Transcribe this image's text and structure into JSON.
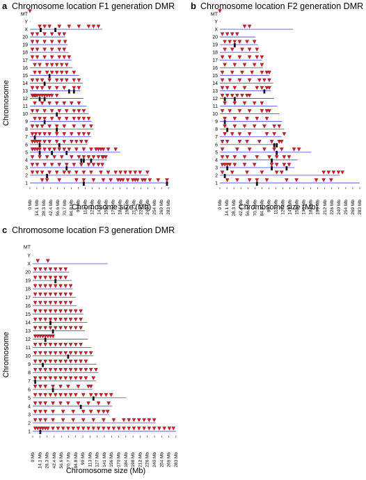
{
  "figure": {
    "panels": [
      {
        "letter": "a",
        "title": "Chromosome location F1 generation DMR"
      },
      {
        "letter": "b",
        "title": "Chromosome location F2 generation DMR"
      },
      {
        "letter": "c",
        "title": "Chromosome location F3 generation DMR"
      }
    ]
  },
  "colors": {
    "chromosome_line": "#5a5ae0",
    "dmr_marker": "#c81e28",
    "dmr_cluster": "#111111",
    "text": "#000000"
  },
  "chart_data": [
    {
      "type": "scatter",
      "title": "Chromosome location F1 generation DMR",
      "xlabel": "Chromosome size (Mb)",
      "ylabel": "Chromosome",
      "xlim": [
        0,
        290
      ],
      "x_ticks": [
        "0 Mb",
        "14.1 Mb",
        "28.3 Mb",
        "42.4 Mb",
        "56.6 Mb",
        "70.7 Mb",
        "84.8 Mb",
        "99 Mb",
        "113 Mb",
        "127 Mb",
        "141 Mb",
        "156 Mb",
        "170 Mb",
        "184 Mb",
        "198 Mb",
        "212 Mb",
        "226 Mb",
        "240 Mb",
        "254 Mb",
        "269 Mb",
        "283 Mb"
      ],
      "chromosomes": [
        "1",
        "2",
        "3",
        "4",
        "5",
        "6",
        "7",
        "8",
        "9",
        "10",
        "11",
        "12",
        "13",
        "14",
        "15",
        "16",
        "17",
        "18",
        "19",
        "20",
        "X",
        "Y",
        "MT"
      ],
      "lengths": [
        283,
        243,
        151,
        157,
        185,
        118,
        125,
        130,
        126,
        120,
        116,
        109,
        103,
        108,
        100,
        87,
        85,
        79,
        77,
        72,
        148,
        1,
        0
      ],
      "dmr_positions": {
        "1": [
          25,
          35,
          60,
          95,
          110,
          130,
          150,
          165,
          180,
          185,
          190,
          200,
          210,
          215,
          220,
          230,
          235,
          245,
          262,
          280
        ],
        "2": [
          5,
          15,
          25,
          40,
          55,
          70,
          80,
          95,
          110,
          125,
          145,
          160,
          175,
          185,
          195,
          205,
          215,
          225,
          240
        ],
        "3": [
          5,
          15,
          30,
          45,
          60,
          75,
          90,
          105,
          120,
          130,
          140,
          148
        ],
        "4": [
          5,
          20,
          35,
          50,
          65,
          85,
          100,
          110,
          120,
          130,
          140,
          148,
          150,
          155
        ],
        "5": [
          5,
          10,
          15,
          20,
          30,
          40,
          50,
          60,
          70,
          80,
          95,
          110,
          125,
          135,
          140,
          145,
          150,
          160,
          175
        ],
        "6": [
          5,
          10,
          15,
          20,
          30,
          40,
          55,
          70,
          85,
          95,
          105,
          115
        ],
        "7": [
          5,
          12,
          20,
          30,
          40,
          55,
          70,
          85,
          100,
          110,
          120
        ],
        "8": [
          5,
          15,
          25,
          40,
          55,
          70,
          90,
          110,
          125
        ],
        "9": [
          10,
          20,
          30,
          45,
          60,
          75,
          90,
          100,
          110,
          120
        ],
        "10": [
          5,
          15,
          30,
          45,
          60,
          75,
          90,
          100,
          110
        ],
        "11": [
          10,
          25,
          40,
          55,
          70,
          85,
          100
        ],
        "12": [
          5,
          8,
          10,
          12,
          15,
          20,
          25,
          30,
          35,
          40,
          45,
          55
        ],
        "13": [
          5,
          15,
          25,
          40,
          55,
          70,
          90,
          100
        ],
        "14": [
          5,
          15,
          25,
          40,
          55,
          65,
          75,
          90,
          100
        ],
        "15": [
          10,
          20,
          35,
          45,
          55,
          65,
          75,
          90
        ],
        "16": [
          10,
          20,
          35,
          45,
          55,
          65,
          75
        ],
        "17": [
          5,
          15,
          30,
          45,
          60,
          70,
          80
        ],
        "18": [
          5,
          15,
          30,
          45,
          60,
          70
        ],
        "19": [
          5,
          15,
          30,
          45,
          60,
          72
        ],
        "20": [
          5,
          15,
          30,
          45,
          60,
          70
        ],
        "X": [
          20,
          30,
          40,
          60,
          80,
          100,
          120,
          130,
          140
        ],
        "Y": [],
        "MT": [
          0
        ]
      },
      "dmr_clusters": {
        "1": [
          110,
          280
        ],
        "2": [
          35
        ],
        "3": [
          75
        ],
        "4": [
          105,
          110,
          125
        ],
        "5": [
          20,
          45,
          75
        ],
        "6": [
          20,
          60
        ],
        "7": [
          10
        ],
        "8": [
          55
        ],
        "9": [
          30
        ],
        "10": [
          55
        ],
        "12": [
          20,
          30
        ],
        "13": [
          80,
          90
        ],
        "14": [
          30
        ],
        "15": [
          40
        ],
        "X": [
          22,
          52
        ]
      }
    },
    {
      "type": "scatter",
      "title": "Chromosome location F2 generation DMR",
      "xlabel": "Chromosome size (Mb)",
      "ylabel": "",
      "xlim": [
        0,
        290
      ],
      "x_ticks": [
        "0 Mb",
        "14.1 Mb",
        "28.3 Mb",
        "42.4 Mb",
        "56.6 Mb",
        "70.7 Mb",
        "84.8 Mb",
        "99 Mb",
        "113 Mb",
        "127 Mb",
        "141 Mb",
        "156 Mb",
        "170 Mb",
        "184 Mb",
        "198 Mb",
        "212 Mb",
        "226 Mb",
        "240 Mb",
        "254 Mb",
        "269 Mb",
        "283 Mb"
      ],
      "chromosomes": [
        "1",
        "2",
        "3",
        "4",
        "5",
        "6",
        "7",
        "8",
        "9",
        "10",
        "11",
        "12",
        "13",
        "14",
        "15",
        "16",
        "17",
        "18",
        "19",
        "20",
        "X",
        "Y",
        "MT"
      ],
      "lengths": [
        283,
        243,
        151,
        157,
        185,
        118,
        125,
        130,
        126,
        120,
        116,
        109,
        103,
        108,
        100,
        87,
        85,
        79,
        77,
        72,
        148,
        1,
        0
      ],
      "dmr_positions": {
        "1": [
          15,
          35,
          60,
          75,
          95,
          135,
          155,
          195,
          210,
          225
        ],
        "2": [
          5,
          25,
          55,
          85,
          115,
          125,
          210,
          220,
          230,
          240,
          248
        ],
        "3": [
          5,
          10,
          15,
          20,
          30,
          50,
          70,
          105,
          115,
          130,
          140
        ],
        "4": [
          5,
          15,
          30,
          50,
          75,
          100,
          115,
          130,
          140
        ],
        "5": [
          5,
          35,
          60,
          90,
          110,
          125,
          150,
          160
        ],
        "6": [
          5,
          15,
          40,
          55,
          80,
          105,
          120,
          125
        ],
        "7": [
          10,
          25,
          40,
          60,
          95,
          110,
          130
        ],
        "8": [
          10,
          30,
          50,
          70,
          90,
          110,
          120
        ],
        "9": [
          10,
          30,
          55,
          75,
          95
        ],
        "10": [
          5,
          20,
          40,
          60,
          85,
          95,
          100
        ],
        "11": [
          10,
          30,
          50,
          70,
          85
        ],
        "12": [
          5,
          15,
          25,
          35,
          45,
          55,
          60
        ],
        "13": [
          5,
          15,
          30,
          50,
          75,
          85,
          95,
          100
        ],
        "14": [
          5,
          20,
          40,
          60,
          80,
          90,
          100
        ],
        "15": [
          5,
          25,
          45,
          65,
          85,
          95,
          100
        ],
        "16": [
          10,
          30,
          50,
          70,
          85
        ],
        "17": [
          5,
          20,
          40,
          60,
          75,
          85
        ],
        "18": [
          10,
          25,
          45,
          60,
          75
        ],
        "19": [
          10,
          20,
          30,
          40,
          55,
          70
        ],
        "20": [
          5,
          15,
          25,
          35
        ],
        "X": [
          50,
          60
        ],
        "Y": [],
        "MT": [
          0
        ]
      },
      "dmr_clusters": {
        "1": [
          75
        ],
        "2": [
          10
        ],
        "3": [
          15,
          105,
          135
        ],
        "4": [
          105
        ],
        "5": [
          115
        ],
        "6": [
          110,
          115
        ],
        "8": [
          15
        ],
        "9": [
          10
        ],
        "12": [
          10,
          30
        ],
        "13": [
          90
        ],
        "19": [
          30
        ]
      }
    },
    {
      "type": "scatter",
      "title": "Chromosome location F3 generation DMR",
      "xlabel": "Chromosome size (Mb)",
      "ylabel": "Chromosome",
      "xlim": [
        0,
        290
      ],
      "x_ticks": [
        "0 Mb",
        "14.1 Mb",
        "28.3 Mb",
        "42.4 Mb",
        "56.6 Mb",
        "70.7 Mb",
        "84.8 Mb",
        "99 Mb",
        "113 Mb",
        "127 Mb",
        "141 Mb",
        "156 Mb",
        "170 Mb",
        "184 Mb",
        "198 Mb",
        "212 Mb",
        "226 Mb",
        "240 Mb",
        "254 Mb",
        "269 Mb",
        "283 Mb"
      ],
      "chromosomes": [
        "1",
        "2",
        "3",
        "4",
        "5",
        "6",
        "7",
        "8",
        "9",
        "10",
        "11",
        "12",
        "13",
        "14",
        "15",
        "16",
        "17",
        "18",
        "19",
        "20",
        "X",
        "Y",
        "MT"
      ],
      "lengths": [
        283,
        243,
        151,
        157,
        185,
        118,
        125,
        130,
        126,
        120,
        116,
        109,
        103,
        108,
        100,
        87,
        85,
        79,
        77,
        72,
        148,
        1,
        0
      ],
      "dmr_positions": {
        "1": [
          5,
          10,
          15,
          20,
          25,
          30,
          40,
          50,
          60,
          70,
          80,
          90,
          100,
          110,
          120,
          130,
          140,
          150,
          160,
          170,
          180,
          190,
          200,
          210,
          220,
          230,
          240,
          250,
          260,
          270,
          278
        ],
        "2": [
          5,
          15,
          25,
          40,
          60,
          80,
          100,
          120,
          140,
          160,
          180,
          190,
          200,
          210,
          220,
          230,
          240
        ],
        "3": [
          5,
          15,
          25,
          40,
          60,
          80,
          100,
          115,
          130,
          140,
          148
        ],
        "4": [
          5,
          15,
          25,
          40,
          55,
          70,
          90,
          110,
          130,
          150
        ],
        "5": [
          5,
          15,
          25,
          35,
          45,
          55,
          65,
          75,
          85,
          100,
          115,
          125,
          135,
          145,
          155
        ],
        "6": [
          5,
          15,
          25,
          40,
          55,
          70,
          90,
          110,
          115
        ],
        "7": [
          5,
          15,
          25,
          35,
          45,
          55,
          65,
          75,
          85,
          95,
          105,
          120
        ],
        "8": [
          5,
          15,
          25,
          35,
          45,
          55,
          65,
          75,
          85,
          95,
          105,
          115,
          125
        ],
        "9": [
          5,
          15,
          25,
          35,
          45,
          55,
          65,
          75,
          85,
          95,
          105
        ],
        "10": [
          5,
          15,
          25,
          35,
          45,
          55,
          65,
          75,
          85,
          95,
          105,
          115
        ],
        "11": [
          5,
          15,
          25,
          35,
          45,
          55,
          65,
          75,
          85,
          95
        ],
        "12": [
          5,
          10,
          15,
          20,
          25,
          30,
          35,
          40
        ],
        "13": [
          5,
          15,
          25,
          35,
          45,
          55,
          65,
          75,
          85,
          95
        ],
        "14": [
          5,
          15,
          25,
          35,
          45,
          55,
          65,
          75,
          85,
          95
        ],
        "15": [
          5,
          15,
          25,
          35,
          45,
          55,
          65,
          75,
          85,
          95
        ],
        "16": [
          5,
          15,
          25,
          35,
          45,
          55,
          65,
          75
        ],
        "17": [
          5,
          15,
          25,
          35,
          45,
          55,
          65,
          75
        ],
        "18": [
          5,
          15,
          25,
          35,
          45,
          55,
          65,
          75
        ],
        "19": [
          5,
          15,
          25,
          35,
          45,
          55,
          65
        ],
        "20": [
          5,
          15,
          25,
          35,
          45,
          55,
          65
        ],
        "X": [
          10,
          30
        ],
        "Y": [],
        "MT": []
      },
      "dmr_clusters": {
        "1": [
          15
        ],
        "4": [
          95
        ],
        "5": [
          120
        ],
        "6": [
          40
        ],
        "7": [
          5
        ],
        "9": [
          20
        ],
        "10": [
          70
        ],
        "12": [
          25
        ],
        "13": [
          40
        ],
        "14": [
          35
        ],
        "19": [
          45
        ]
      }
    }
  ]
}
